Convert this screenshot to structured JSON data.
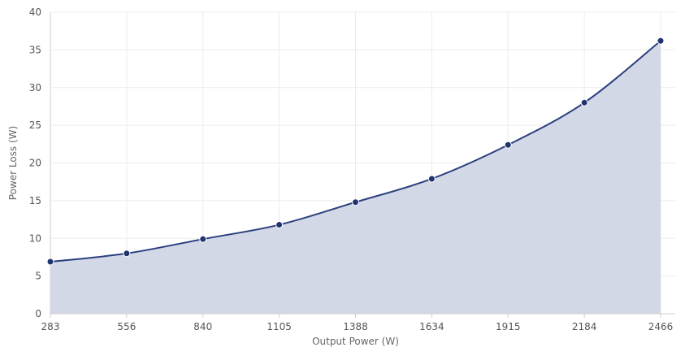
{
  "chart_data": {
    "type": "area",
    "title": "",
    "xlabel": "Output Power (W)",
    "ylabel": "Power Loss (W)",
    "categories": [
      "283",
      "556",
      "840",
      "1105",
      "1388",
      "1634",
      "1915",
      "2184",
      "2466"
    ],
    "series": [
      {
        "values": [
          6.9,
          8.0,
          9.9,
          11.8,
          14.8,
          17.9,
          22.4,
          28.0,
          36.2
        ]
      }
    ],
    "ylim": [
      0,
      40
    ],
    "yticks": [
      0,
      5,
      10,
      15,
      20,
      25,
      30,
      35,
      40
    ],
    "grid": true,
    "legend": "none",
    "colors": {
      "line": "#2b3f7e",
      "fill": "#d3d8e7",
      "point": "#1f3470"
    }
  }
}
